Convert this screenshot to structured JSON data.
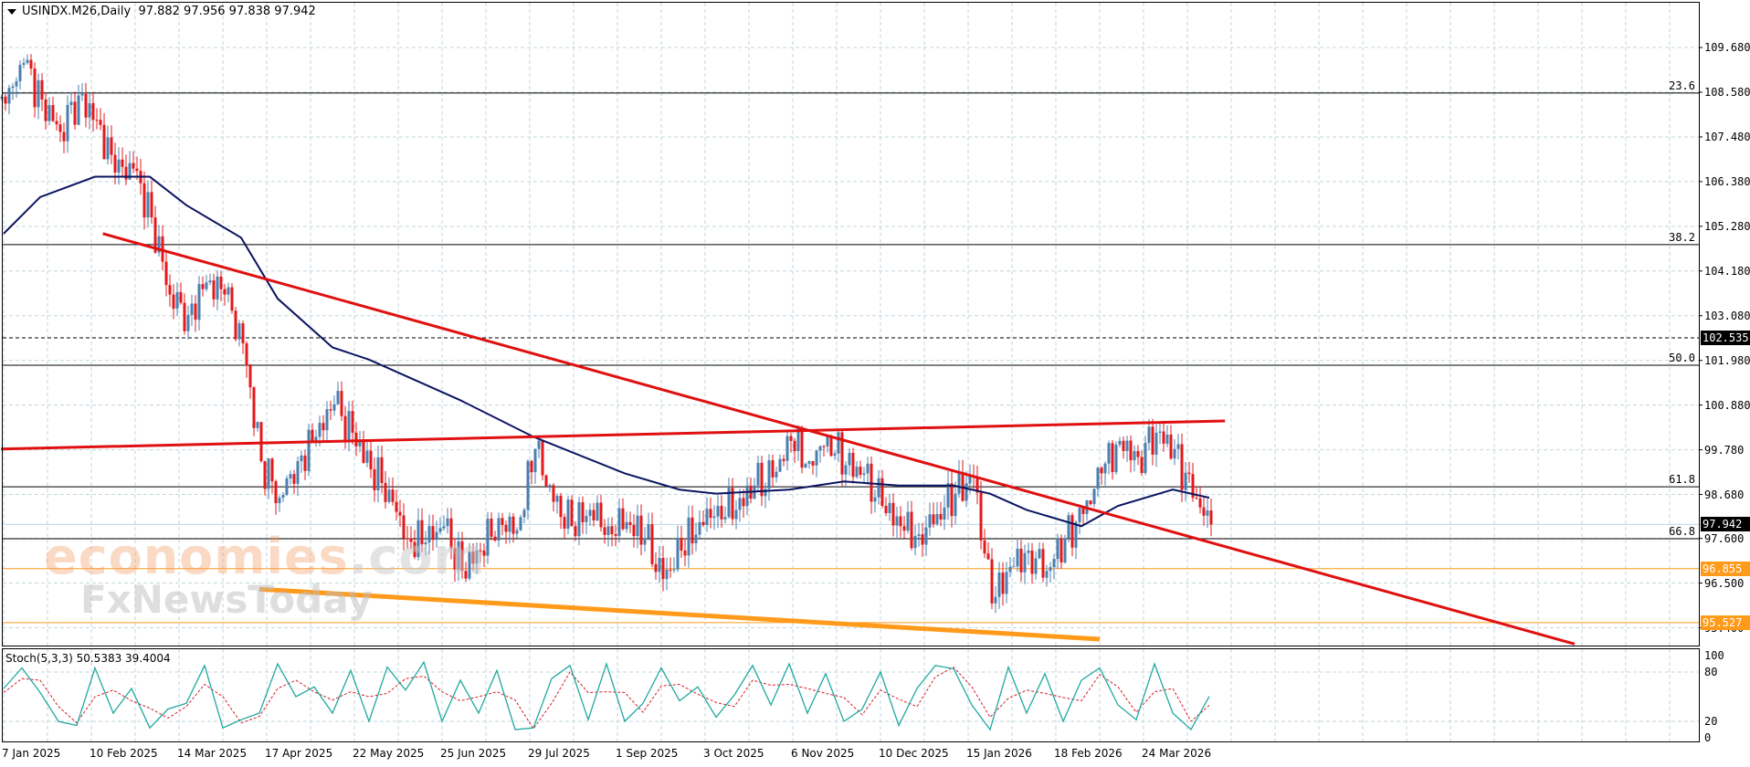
{
  "header": {
    "symbol": "USINDX.M26,Daily",
    "ohlc": "97.882 97.956 97.838 97.942"
  },
  "stoch_header": {
    "label": "Stoch(5,3,3)",
    "values": "50.5383 39.4004"
  },
  "watermarks": {
    "brand1": "economies",
    "brand1_suffix": ".com",
    "brand2": "FxNewsToday"
  },
  "colors": {
    "bull": "#4a7fb0",
    "bear": "#e3191b",
    "ma": "#0b1460",
    "trendline": "#e01010",
    "support": "#ff9a1a",
    "stoch_k": "#20a8a0",
    "stoch_d": "#d0202a",
    "grid": "#c3d6de"
  },
  "chart_data": [
    {
      "type": "candlestick",
      "title": "",
      "price_ticks": [
        "109.680",
        "108.580",
        "107.480",
        "106.380",
        "105.280",
        "104.180",
        "103.080",
        "101.980",
        "100.880",
        "99.780",
        "98.680",
        "97.600",
        "96.500",
        "95.400"
      ],
      "date_ticks": [
        "7 Jan 2025",
        "10 Feb 2025",
        "14 Mar 2025",
        "17 Apr 2025",
        "22 May 2025",
        "25 Jun 2025",
        "29 Jul 2025",
        "1 Sep 2025",
        "3 Oct 2025",
        "6 Nov 2025",
        "10 Dec 2025",
        "15 Jan 2026",
        "18 Feb 2026",
        "24 Mar 2026"
      ],
      "ylim": [
        94.96,
        110.85
      ],
      "grid": true,
      "weekly_closes": {
        "dates": [
          "2025-01-07",
          "2025-01-14",
          "2025-01-21",
          "2025-01-28",
          "2025-02-04",
          "2025-02-11",
          "2025-02-18",
          "2025-02-25",
          "2025-03-04",
          "2025-03-11",
          "2025-03-18",
          "2025-03-25",
          "2025-04-01",
          "2025-04-08",
          "2025-04-15",
          "2025-04-22",
          "2025-04-29",
          "2025-05-06",
          "2025-05-13",
          "2025-05-20",
          "2025-05-27",
          "2025-06-03",
          "2025-06-10",
          "2025-06-17",
          "2025-06-24",
          "2025-07-01",
          "2025-07-08",
          "2025-07-15",
          "2025-07-22",
          "2025-07-29",
          "2025-08-05",
          "2025-08-12",
          "2025-08-19",
          "2025-08-26",
          "2025-09-02",
          "2025-09-09",
          "2025-09-16",
          "2025-09-23",
          "2025-09-30",
          "2025-10-07",
          "2025-10-14",
          "2025-10-21",
          "2025-10-28",
          "2025-11-04",
          "2025-11-11",
          "2025-11-18",
          "2025-11-25",
          "2025-12-02",
          "2025-12-09",
          "2025-12-16",
          "2025-12-23",
          "2025-12-30",
          "2026-01-06",
          "2026-01-13",
          "2026-01-20",
          "2026-01-27",
          "2026-02-03",
          "2026-02-10",
          "2026-02-17",
          "2026-02-24",
          "2026-03-03",
          "2026-03-10",
          "2026-03-17",
          "2026-03-24",
          "2026-03-31",
          "2026-04-07",
          "2026-04-14"
        ],
        "close": [
          108.3,
          109.3,
          108.4,
          107.6,
          108.5,
          107.9,
          106.6,
          106.7,
          105.5,
          103.6,
          103.1,
          103.9,
          103.6,
          102.4,
          99.5,
          98.6,
          99.5,
          100.1,
          100.9,
          100.2,
          99.3,
          98.8,
          97.6,
          97.5,
          97.9,
          96.8,
          97.3,
          98.1,
          97.8,
          99.8,
          98.5,
          97.9,
          98.3,
          97.9,
          98.0,
          97.6,
          96.6,
          97.3,
          98.0,
          98.4,
          98.3,
          98.9,
          99.1,
          100.0,
          99.5,
          100.1,
          99.4,
          99.2,
          98.4,
          97.9,
          97.7,
          98.2,
          98.7,
          99.1,
          96.0,
          96.9,
          97.3,
          96.8,
          97.6,
          98.2,
          99.2,
          100.0,
          99.6,
          100.2,
          99.8,
          98.6,
          97.942
        ]
      },
      "last_price": {
        "value": "97.942",
        "color": "#000000"
      },
      "moving_average": [
        [
          "2025-01-07",
          105.1
        ],
        [
          "2025-01-21",
          106.0
        ],
        [
          "2025-02-11",
          106.5
        ],
        [
          "2025-03-04",
          106.5
        ],
        [
          "2025-03-18",
          105.8
        ],
        [
          "2025-04-08",
          105.0
        ],
        [
          "2025-04-22",
          103.5
        ],
        [
          "2025-05-13",
          102.3
        ],
        [
          "2025-05-27",
          102.0
        ],
        [
          "2025-07-01",
          101.0
        ],
        [
          "2025-07-29",
          100.1
        ],
        [
          "2025-09-02",
          99.2
        ],
        [
          "2025-09-23",
          98.8
        ],
        [
          "2025-10-07",
          98.7
        ],
        [
          "2025-11-04",
          98.8
        ],
        [
          "2025-11-25",
          99.0
        ],
        [
          "2025-12-16",
          98.9
        ],
        [
          "2026-01-06",
          98.9
        ],
        [
          "2026-01-20",
          98.7
        ],
        [
          "2026-02-03",
          98.3
        ],
        [
          "2026-02-24",
          97.9
        ],
        [
          "2026-03-10",
          98.4
        ],
        [
          "2026-03-31",
          98.8
        ],
        [
          "2026-04-14",
          98.6
        ]
      ],
      "trendlines": [
        {
          "kind": "descending",
          "color": "#e01010",
          "from": [
            "2025-02-14",
            105.1
          ],
          "to": [
            "2026-09-01",
            95.0
          ]
        },
        {
          "kind": "resistance",
          "color": "#e01010",
          "from": [
            "2025-01-06",
            99.8
          ],
          "to": [
            "2026-04-20",
            100.49
          ]
        },
        {
          "kind": "support",
          "color": "#ff9a1a",
          "from": [
            "2025-04-15",
            96.35
          ],
          "to": [
            "2026-03-03",
            95.12
          ]
        }
      ],
      "horizontal_levels": [
        {
          "price": 108.56,
          "label": "23.6",
          "style": "solid",
          "color": "#000000"
        },
        {
          "price": 104.83,
          "label": "38.2",
          "style": "solid",
          "color": "#000000"
        },
        {
          "price": 102.535,
          "label": "102.535",
          "style": "dashed",
          "color": "#000000",
          "tag": true
        },
        {
          "price": 101.86,
          "label": "50.0",
          "style": "solid",
          "color": "#000000"
        },
        {
          "price": 98.87,
          "label": "61.8",
          "style": "solid",
          "color": "#000000"
        },
        {
          "price": 97.59,
          "label": "66.8",
          "style": "solid",
          "color": "#000000"
        },
        {
          "price": 96.855,
          "label": "96.855",
          "style": "solid",
          "color": "#ff9a1a",
          "tag": true
        },
        {
          "price": 95.527,
          "label": "95.527",
          "style": "solid",
          "color": "#ff9a1a",
          "tag": true
        }
      ]
    },
    {
      "type": "line",
      "title": "Stoch(5,3,3)",
      "ylim": [
        0,
        100
      ],
      "y_ticks": [
        "100",
        "80",
        "20",
        "0"
      ],
      "k": [
        60,
        85,
        55,
        20,
        15,
        85,
        30,
        60,
        12,
        35,
        42,
        88,
        12,
        22,
        30,
        90,
        50,
        62,
        30,
        82,
        20,
        86,
        58,
        92,
        20,
        70,
        30,
        82,
        10,
        12,
        72,
        88,
        22,
        90,
        20,
        42,
        85,
        45,
        62,
        25,
        52,
        88,
        40,
        90,
        30,
        78,
        20,
        35,
        80,
        15,
        60,
        88,
        84,
        40,
        10,
        86,
        30,
        78,
        20,
        70,
        85,
        40,
        22,
        90,
        30,
        10,
        50.5
      ],
      "d": [
        55,
        72,
        70,
        38,
        18,
        50,
        58,
        45,
        36,
        24,
        38,
        65,
        50,
        18,
        26,
        60,
        70,
        56,
        46,
        56,
        50,
        54,
        72,
        75,
        56,
        45,
        50,
        56,
        46,
        11,
        42,
        80,
        55,
        56,
        55,
        31,
        63,
        65,
        53,
        43,
        38,
        70,
        64,
        65,
        60,
        54,
        49,
        28,
        58,
        47,
        38,
        74,
        86,
        62,
        25,
        48,
        58,
        54,
        49,
        45,
        77,
        62,
        31,
        56,
        60,
        20,
        39.4
      ]
    }
  ]
}
